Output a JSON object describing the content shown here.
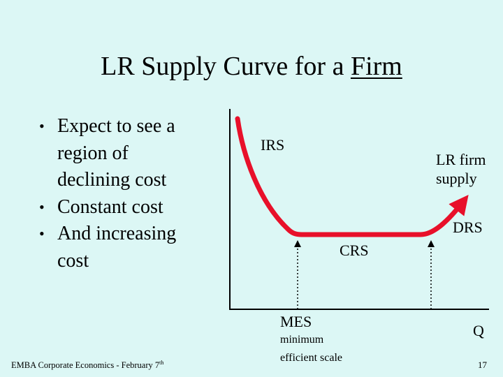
{
  "slide": {
    "title_prefix": "LR Supply Curve for a ",
    "title_emph": "Firm",
    "bullets": [
      "Expect to see a region of declining cost",
      "Constant cost",
      "And increasing cost"
    ],
    "footer": "EMBA Corporate Economics - February 7",
    "footer_sup": "th",
    "page_number": "17"
  },
  "diagram": {
    "region_labels": {
      "irs": "IRS",
      "crs": "CRS",
      "drs": "DRS"
    },
    "curve_label_line1": "LR firm",
    "curve_label_line2": "supply",
    "x_axis_label": "Q",
    "mes_label": "MES",
    "mes_sub_line1": "minimum",
    "mes_sub_line2": "efficient  scale",
    "colors": {
      "background": "#dcf7f5",
      "curve": "#e8102a",
      "axis": "#000000"
    }
  }
}
